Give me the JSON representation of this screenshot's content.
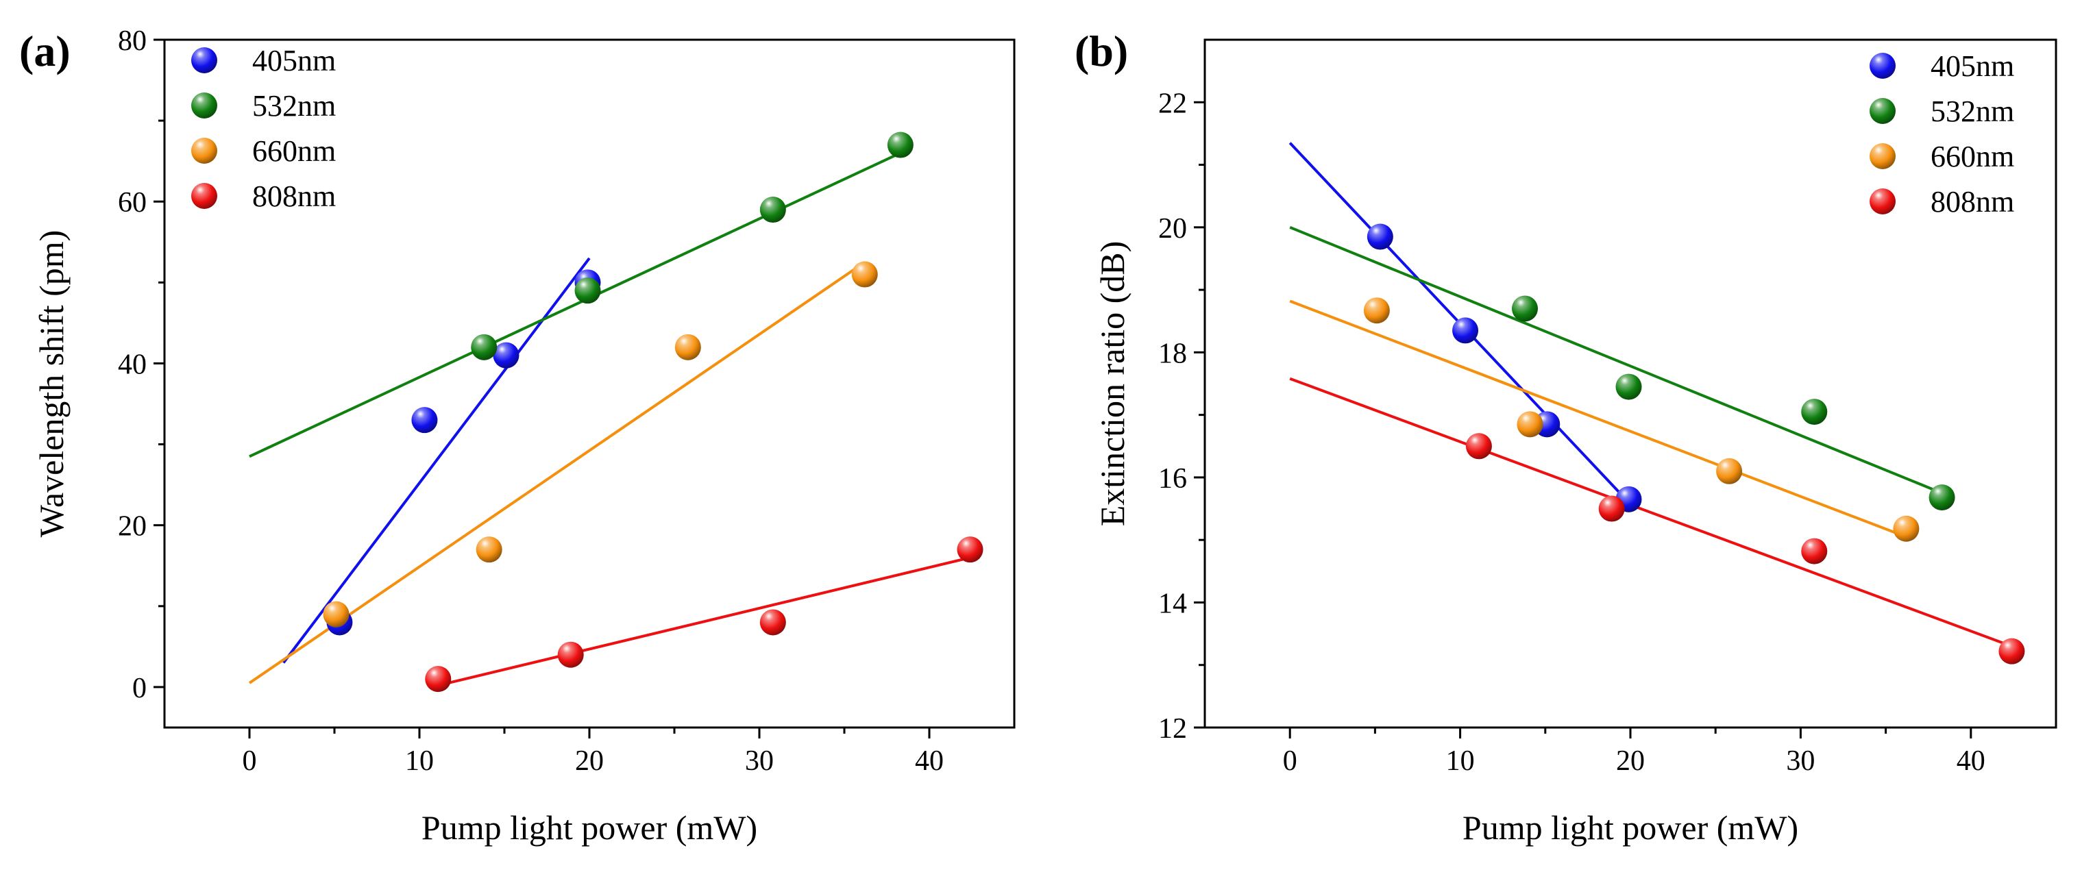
{
  "figure": {
    "background": "#ffffff"
  },
  "chart_data": [
    {
      "type": "scatter",
      "panel_label": "(a)",
      "xlabel": "Pump light power (mW)",
      "ylabel": "Wavelength shift (pm)",
      "xlim": [
        -5,
        45
      ],
      "ylim": [
        -5,
        80
      ],
      "xticks": [
        0,
        10,
        20,
        30,
        40
      ],
      "yticks": [
        0,
        20,
        40,
        60,
        80
      ],
      "legend_position": "top-left",
      "series": [
        {
          "name": "405nm",
          "color": "#1010ee",
          "points": [
            [
              5.3,
              8
            ],
            [
              10.3,
              33
            ],
            [
              15.1,
              41
            ],
            [
              19.9,
              50
            ]
          ],
          "fit_line": [
            [
              2,
              3
            ],
            [
              20,
              53
            ]
          ]
        },
        {
          "name": "532nm",
          "color": "#108010",
          "points": [
            [
              13.8,
              42
            ],
            [
              19.9,
              49
            ],
            [
              30.8,
              59
            ],
            [
              38.3,
              67
            ]
          ],
          "fit_line": [
            [
              0,
              28.5
            ],
            [
              38.3,
              66
            ]
          ]
        },
        {
          "name": "660nm",
          "color": "#f5900e",
          "points": [
            [
              5.1,
              9
            ],
            [
              14.1,
              17
            ],
            [
              25.8,
              42
            ],
            [
              36.2,
              51
            ]
          ],
          "fit_line": [
            [
              0,
              0.5
            ],
            [
              36.2,
              52.5
            ]
          ]
        },
        {
          "name": "808nm",
          "color": "#ee1010",
          "points": [
            [
              11.1,
              1
            ],
            [
              18.9,
              4
            ],
            [
              30.8,
              8
            ],
            [
              42.4,
              17
            ]
          ],
          "fit_line": [
            [
              11.1,
              0.2
            ],
            [
              42.4,
              16
            ]
          ]
        }
      ]
    },
    {
      "type": "scatter",
      "panel_label": "(b)",
      "xlabel": "Pump light power (mW)",
      "ylabel": "Extinction ratio (dB)",
      "xlim": [
        -5,
        45
      ],
      "ylim": [
        12,
        23
      ],
      "xticks": [
        0,
        10,
        20,
        30,
        40
      ],
      "yticks": [
        12,
        14,
        16,
        18,
        20,
        22
      ],
      "legend_position": "top-right",
      "series": [
        {
          "name": "405nm",
          "color": "#1010ee",
          "points": [
            [
              5.3,
              19.85
            ],
            [
              10.3,
              18.35
            ],
            [
              15.1,
              16.85
            ],
            [
              19.9,
              15.65
            ]
          ],
          "fit_line": [
            [
              0,
              21.35
            ],
            [
              19.9,
              15.6
            ]
          ]
        },
        {
          "name": "532nm",
          "color": "#108010",
          "points": [
            [
              13.8,
              18.7
            ],
            [
              19.9,
              17.45
            ],
            [
              30.8,
              17.05
            ],
            [
              38.3,
              15.68
            ]
          ],
          "fit_line": [
            [
              0,
              20.0
            ],
            [
              38.3,
              15.75
            ]
          ]
        },
        {
          "name": "660nm",
          "color": "#f5900e",
          "points": [
            [
              5.1,
              18.67
            ],
            [
              14.1,
              16.85
            ],
            [
              25.8,
              16.1
            ],
            [
              36.2,
              15.18
            ]
          ],
          "fit_line": [
            [
              0,
              18.82
            ],
            [
              36.2,
              15.05
            ]
          ]
        },
        {
          "name": "808nm",
          "color": "#ee1010",
          "points": [
            [
              11.1,
              16.5
            ],
            [
              18.9,
              15.5
            ],
            [
              30.8,
              14.82
            ],
            [
              42.4,
              13.22
            ]
          ],
          "fit_line": [
            [
              0,
              17.58
            ],
            [
              42.4,
              13.3
            ]
          ]
        }
      ]
    }
  ]
}
